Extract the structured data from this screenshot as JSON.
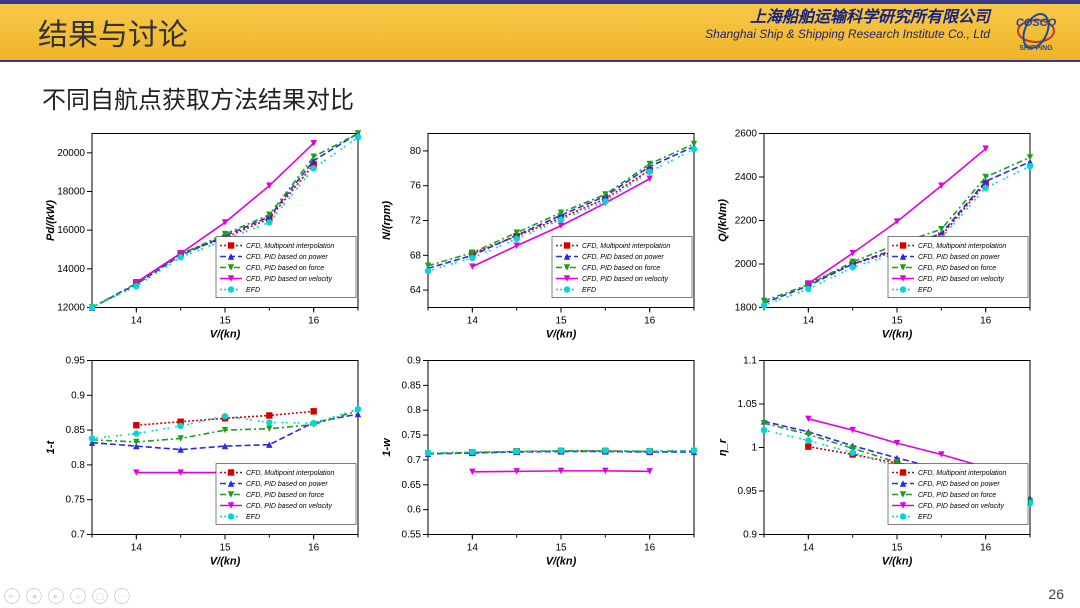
{
  "header": {
    "title": "结果与讨论",
    "org_cn": "上海船舶运输科学研究所有限公司",
    "org_en": "Shanghai Ship & Shipping Research Institute Co., Ltd",
    "logo_text": "COSCO",
    "logo_sub": "SHIPPING"
  },
  "subtitle": "不同自航点获取方法结果对比",
  "page_number": "26",
  "common": {
    "x_label": "V/(kn)",
    "x_ticks": [
      14,
      15,
      16
    ],
    "x_lim": [
      13.5,
      16.5
    ],
    "axis_color": "#000000",
    "grid_color": "#cccccc",
    "tick_fontsize": 10,
    "label_fontsize": 11,
    "legend_fontsize": 7,
    "legend_labels": [
      "CFD, Multipoint interpolation",
      "CFD, PID based on power",
      "CFD, PID based on force",
      "CFD, PID based on velocity",
      "EFD"
    ],
    "legend_colors": [
      "#d40000",
      "#2a2ae0",
      "#1ca01c",
      "#e000e0",
      "#00d8d8"
    ],
    "legend_markers": [
      "square",
      "triangle-up",
      "triangle-down",
      "triangle-down",
      "circle"
    ],
    "legend_dash": [
      "2,2",
      "6,3",
      "6,3,2,3",
      "0",
      "2,2,2,6"
    ]
  },
  "charts": [
    {
      "id": "pd",
      "y_label": "Pd/(kW)",
      "y_lim": [
        12000,
        21000
      ],
      "y_ticks": [
        12000,
        14000,
        16000,
        18000,
        20000
      ],
      "legend_pos": "br",
      "series": [
        {
          "c": "#d40000",
          "m": "square",
          "d": "2,2",
          "pts": [
            [
              14,
              13300
            ],
            [
              14.5,
              14800
            ],
            [
              15,
              15600
            ],
            [
              15.5,
              16600
            ],
            [
              16,
              19400
            ]
          ]
        },
        {
          "c": "#2a2ae0",
          "m": "triangle-up",
          "d": "6,3",
          "pts": [
            [
              13.5,
              12000
            ],
            [
              14,
              13200
            ],
            [
              14.5,
              14700
            ],
            [
              15,
              15700
            ],
            [
              15.5,
              16700
            ],
            [
              16,
              19600
            ],
            [
              16.5,
              21000
            ]
          ]
        },
        {
          "c": "#1ca01c",
          "m": "triangle-down",
          "d": "6,3,2,3",
          "pts": [
            [
              13.5,
              12000
            ],
            [
              14,
              13250
            ],
            [
              14.5,
              14750
            ],
            [
              15,
              15800
            ],
            [
              15.5,
              16800
            ],
            [
              16,
              19800
            ],
            [
              16.5,
              21000
            ]
          ]
        },
        {
          "c": "#e000e0",
          "m": "triangle-down",
          "d": "0",
          "pts": [
            [
              14,
              13300
            ],
            [
              14.5,
              14800
            ],
            [
              15,
              16400
            ],
            [
              15.5,
              18300
            ],
            [
              16,
              20500
            ]
          ]
        },
        {
          "c": "#00d8d8",
          "m": "circle",
          "d": "2,2,2,6",
          "pts": [
            [
              13.5,
              12000
            ],
            [
              14,
              13100
            ],
            [
              14.5,
              14600
            ],
            [
              15,
              15500
            ],
            [
              15.5,
              16400
            ],
            [
              16,
              19200
            ],
            [
              16.5,
              20800
            ]
          ]
        }
      ]
    },
    {
      "id": "n",
      "y_label": "N/(rpm)",
      "y_lim": [
        62,
        82
      ],
      "y_ticks": [
        64,
        68,
        72,
        76,
        80
      ],
      "legend_pos": "br",
      "series": [
        {
          "c": "#d40000",
          "m": "square",
          "d": "2,2",
          "pts": [
            [
              14,
              68.2
            ],
            [
              14.5,
              70.2
            ],
            [
              15,
              72.3
            ],
            [
              15.5,
              74.5
            ],
            [
              16,
              77.8
            ]
          ]
        },
        {
          "c": "#2a2ae0",
          "m": "triangle-up",
          "d": "6,3",
          "pts": [
            [
              13.5,
              66.5
            ],
            [
              14,
              68.0
            ],
            [
              14.5,
              70.3
            ],
            [
              15,
              72.6
            ],
            [
              15.5,
              74.8
            ],
            [
              16,
              78.2
            ],
            [
              16.5,
              80.5
            ]
          ]
        },
        {
          "c": "#1ca01c",
          "m": "triangle-down",
          "d": "6,3,2,3",
          "pts": [
            [
              13.5,
              66.8
            ],
            [
              14,
              68.3
            ],
            [
              14.5,
              70.6
            ],
            [
              15,
              72.9
            ],
            [
              15.5,
              75.0
            ],
            [
              16,
              78.5
            ],
            [
              16.5,
              80.8
            ]
          ]
        },
        {
          "c": "#e000e0",
          "m": "triangle-down",
          "d": "0",
          "pts": [
            [
              14,
              66.7
            ],
            [
              14.5,
              69.1
            ],
            [
              15,
              71.4
            ],
            [
              15.5,
              74.0
            ],
            [
              16,
              76.8
            ]
          ]
        },
        {
          "c": "#00d8d8",
          "m": "circle",
          "d": "2,2,2,6",
          "pts": [
            [
              13.5,
              66.2
            ],
            [
              14,
              67.7
            ],
            [
              14.5,
              69.9
            ],
            [
              15,
              72.1
            ],
            [
              15.5,
              74.2
            ],
            [
              16,
              77.6
            ],
            [
              16.5,
              80.2
            ]
          ]
        }
      ]
    },
    {
      "id": "q",
      "y_label": "Q/(kNm)",
      "y_lim": [
        1800,
        2600
      ],
      "y_ticks": [
        1800,
        2000,
        2200,
        2400,
        2600
      ],
      "legend_pos": "br",
      "series": [
        {
          "c": "#d40000",
          "m": "square",
          "d": "2,2",
          "pts": [
            [
              14,
              1910
            ],
            [
              14.5,
              2000
            ],
            [
              15,
              2060
            ],
            [
              15.5,
              2130
            ],
            [
              16,
              2370
            ]
          ]
        },
        {
          "c": "#2a2ae0",
          "m": "triangle-up",
          "d": "6,3",
          "pts": [
            [
              13.5,
              1820
            ],
            [
              14,
              1900
            ],
            [
              14.5,
              2000
            ],
            [
              15,
              2070
            ],
            [
              15.5,
              2140
            ],
            [
              16,
              2380
            ],
            [
              16.5,
              2470
            ]
          ]
        },
        {
          "c": "#1ca01c",
          "m": "triangle-down",
          "d": "6,3,2,3",
          "pts": [
            [
              13.5,
              1830
            ],
            [
              14,
              1905
            ],
            [
              14.5,
              2010
            ],
            [
              15,
              2090
            ],
            [
              15.5,
              2160
            ],
            [
              16,
              2400
            ],
            [
              16.5,
              2490
            ]
          ]
        },
        {
          "c": "#e000e0",
          "m": "triangle-down",
          "d": "0",
          "pts": [
            [
              14,
              1910
            ],
            [
              14.5,
              2050
            ],
            [
              15,
              2195
            ],
            [
              15.5,
              2360
            ],
            [
              16,
              2530
            ]
          ]
        },
        {
          "c": "#00d8d8",
          "m": "circle",
          "d": "2,2,2,6",
          "pts": [
            [
              13.5,
              1810
            ],
            [
              14,
              1885
            ],
            [
              14.5,
              1985
            ],
            [
              15,
              2050
            ],
            [
              15.5,
              2120
            ],
            [
              16,
              2350
            ],
            [
              16.5,
              2450
            ]
          ]
        }
      ]
    },
    {
      "id": "1t",
      "y_label": "1-t",
      "y_lim": [
        0.7,
        0.95
      ],
      "y_ticks": [
        0.7,
        0.75,
        0.8,
        0.85,
        0.9,
        0.95
      ],
      "legend_pos": "br",
      "series": [
        {
          "c": "#d40000",
          "m": "square",
          "d": "2,2",
          "pts": [
            [
              14,
              0.857
            ],
            [
              14.5,
              0.862
            ],
            [
              15,
              0.867
            ],
            [
              15.5,
              0.871
            ],
            [
              16,
              0.877
            ]
          ]
        },
        {
          "c": "#2a2ae0",
          "m": "triangle-up",
          "d": "6,3",
          "pts": [
            [
              13.5,
              0.832
            ],
            [
              14,
              0.827
            ],
            [
              14.5,
              0.822
            ],
            [
              15,
              0.827
            ],
            [
              15.5,
              0.829
            ],
            [
              16,
              0.861
            ],
            [
              16.5,
              0.873
            ]
          ]
        },
        {
          "c": "#1ca01c",
          "m": "triangle-down",
          "d": "6,3,2,3",
          "pts": [
            [
              13.5,
              0.836
            ],
            [
              14,
              0.833
            ],
            [
              14.5,
              0.838
            ],
            [
              15,
              0.85
            ],
            [
              15.5,
              0.852
            ],
            [
              16,
              0.858
            ],
            [
              16.5,
              0.878
            ]
          ]
        },
        {
          "c": "#e000e0",
          "m": "triangle-down",
          "d": "0",
          "pts": [
            [
              14,
              0.789
            ],
            [
              14.5,
              0.789
            ],
            [
              15,
              0.789
            ],
            [
              15.5,
              0.789
            ],
            [
              16,
              0.787
            ]
          ]
        },
        {
          "c": "#00d8d8",
          "m": "circle",
          "d": "2,2,2,6",
          "pts": [
            [
              13.5,
              0.838
            ],
            [
              14,
              0.845
            ],
            [
              14.5,
              0.856
            ],
            [
              15,
              0.87
            ],
            [
              15.5,
              0.861
            ],
            [
              16,
              0.86
            ],
            [
              16.5,
              0.88
            ]
          ]
        }
      ]
    },
    {
      "id": "1w",
      "y_label": "1-w",
      "y_lim": [
        0.55,
        0.9
      ],
      "y_ticks": [
        0.55,
        0.6,
        0.65,
        0.7,
        0.75,
        0.8,
        0.85,
        0.9
      ],
      "legend_pos": "none",
      "series": [
        {
          "c": "#d40000",
          "m": "square",
          "d": "2,2",
          "pts": [
            [
              14,
              0.715
            ],
            [
              14.5,
              0.717
            ],
            [
              15,
              0.718
            ],
            [
              15.5,
              0.718
            ],
            [
              16,
              0.717
            ]
          ]
        },
        {
          "c": "#2a2ae0",
          "m": "triangle-up",
          "d": "6,3",
          "pts": [
            [
              13.5,
              0.712
            ],
            [
              14,
              0.714
            ],
            [
              14.5,
              0.716
            ],
            [
              15,
              0.717
            ],
            [
              15.5,
              0.717
            ],
            [
              16,
              0.716
            ],
            [
              16.5,
              0.716
            ]
          ]
        },
        {
          "c": "#1ca01c",
          "m": "triangle-down",
          "d": "6,3,2,3",
          "pts": [
            [
              13.5,
              0.713
            ],
            [
              14,
              0.715
            ],
            [
              14.5,
              0.717
            ],
            [
              15,
              0.718
            ],
            [
              15.5,
              0.718
            ],
            [
              16,
              0.717
            ],
            [
              16.5,
              0.718
            ]
          ]
        },
        {
          "c": "#e000e0",
          "m": "triangle-down",
          "d": "0",
          "pts": [
            [
              14,
              0.676
            ],
            [
              14.5,
              0.677
            ],
            [
              15,
              0.678
            ],
            [
              15.5,
              0.678
            ],
            [
              16,
              0.677
            ]
          ]
        },
        {
          "c": "#00d8d8",
          "m": "circle",
          "d": "2,2,2,6",
          "pts": [
            [
              13.5,
              0.714
            ],
            [
              14,
              0.716
            ],
            [
              14.5,
              0.717
            ],
            [
              15,
              0.719
            ],
            [
              15.5,
              0.719
            ],
            [
              16,
              0.718
            ],
            [
              16.5,
              0.719
            ]
          ]
        }
      ]
    },
    {
      "id": "etar",
      "y_label": "η_r",
      "y_lim": [
        0.9,
        1.1
      ],
      "y_ticks": [
        0.9,
        0.95,
        1.0,
        1.05,
        1.1
      ],
      "legend_pos": "br",
      "series": [
        {
          "c": "#d40000",
          "m": "square",
          "d": "2,2",
          "pts": [
            [
              14,
              1.001
            ],
            [
              14.5,
              0.992
            ],
            [
              15,
              0.982
            ],
            [
              15.5,
              0.97
            ],
            [
              16,
              0.947
            ]
          ]
        },
        {
          "c": "#2a2ae0",
          "m": "triangle-up",
          "d": "6,3",
          "pts": [
            [
              13.5,
              1.03
            ],
            [
              14,
              1.018
            ],
            [
              14.5,
              1.002
            ],
            [
              15,
              0.988
            ],
            [
              15.5,
              0.975
            ],
            [
              16,
              0.952
            ],
            [
              16.5,
              0.942
            ]
          ]
        },
        {
          "c": "#1ca01c",
          "m": "triangle-down",
          "d": "6,3,2,3",
          "pts": [
            [
              13.5,
              1.028
            ],
            [
              14,
              1.015
            ],
            [
              14.5,
              0.999
            ],
            [
              15,
              0.983
            ],
            [
              15.5,
              0.969
            ],
            [
              16,
              0.948
            ],
            [
              16.5,
              0.938
            ]
          ]
        },
        {
          "c": "#e000e0",
          "m": "triangle-down",
          "d": "0",
          "pts": [
            [
              14,
              1.033
            ],
            [
              14.5,
              1.02
            ],
            [
              15,
              1.005
            ],
            [
              15.5,
              0.992
            ],
            [
              16,
              0.977
            ]
          ]
        },
        {
          "c": "#00d8d8",
          "m": "circle",
          "d": "2,2,2,6",
          "pts": [
            [
              13.5,
              1.02
            ],
            [
              14,
              1.008
            ],
            [
              14.5,
              0.994
            ],
            [
              15,
              0.978
            ],
            [
              15.5,
              0.964
            ],
            [
              16,
              0.945
            ],
            [
              16.5,
              0.936
            ]
          ]
        }
      ]
    }
  ]
}
